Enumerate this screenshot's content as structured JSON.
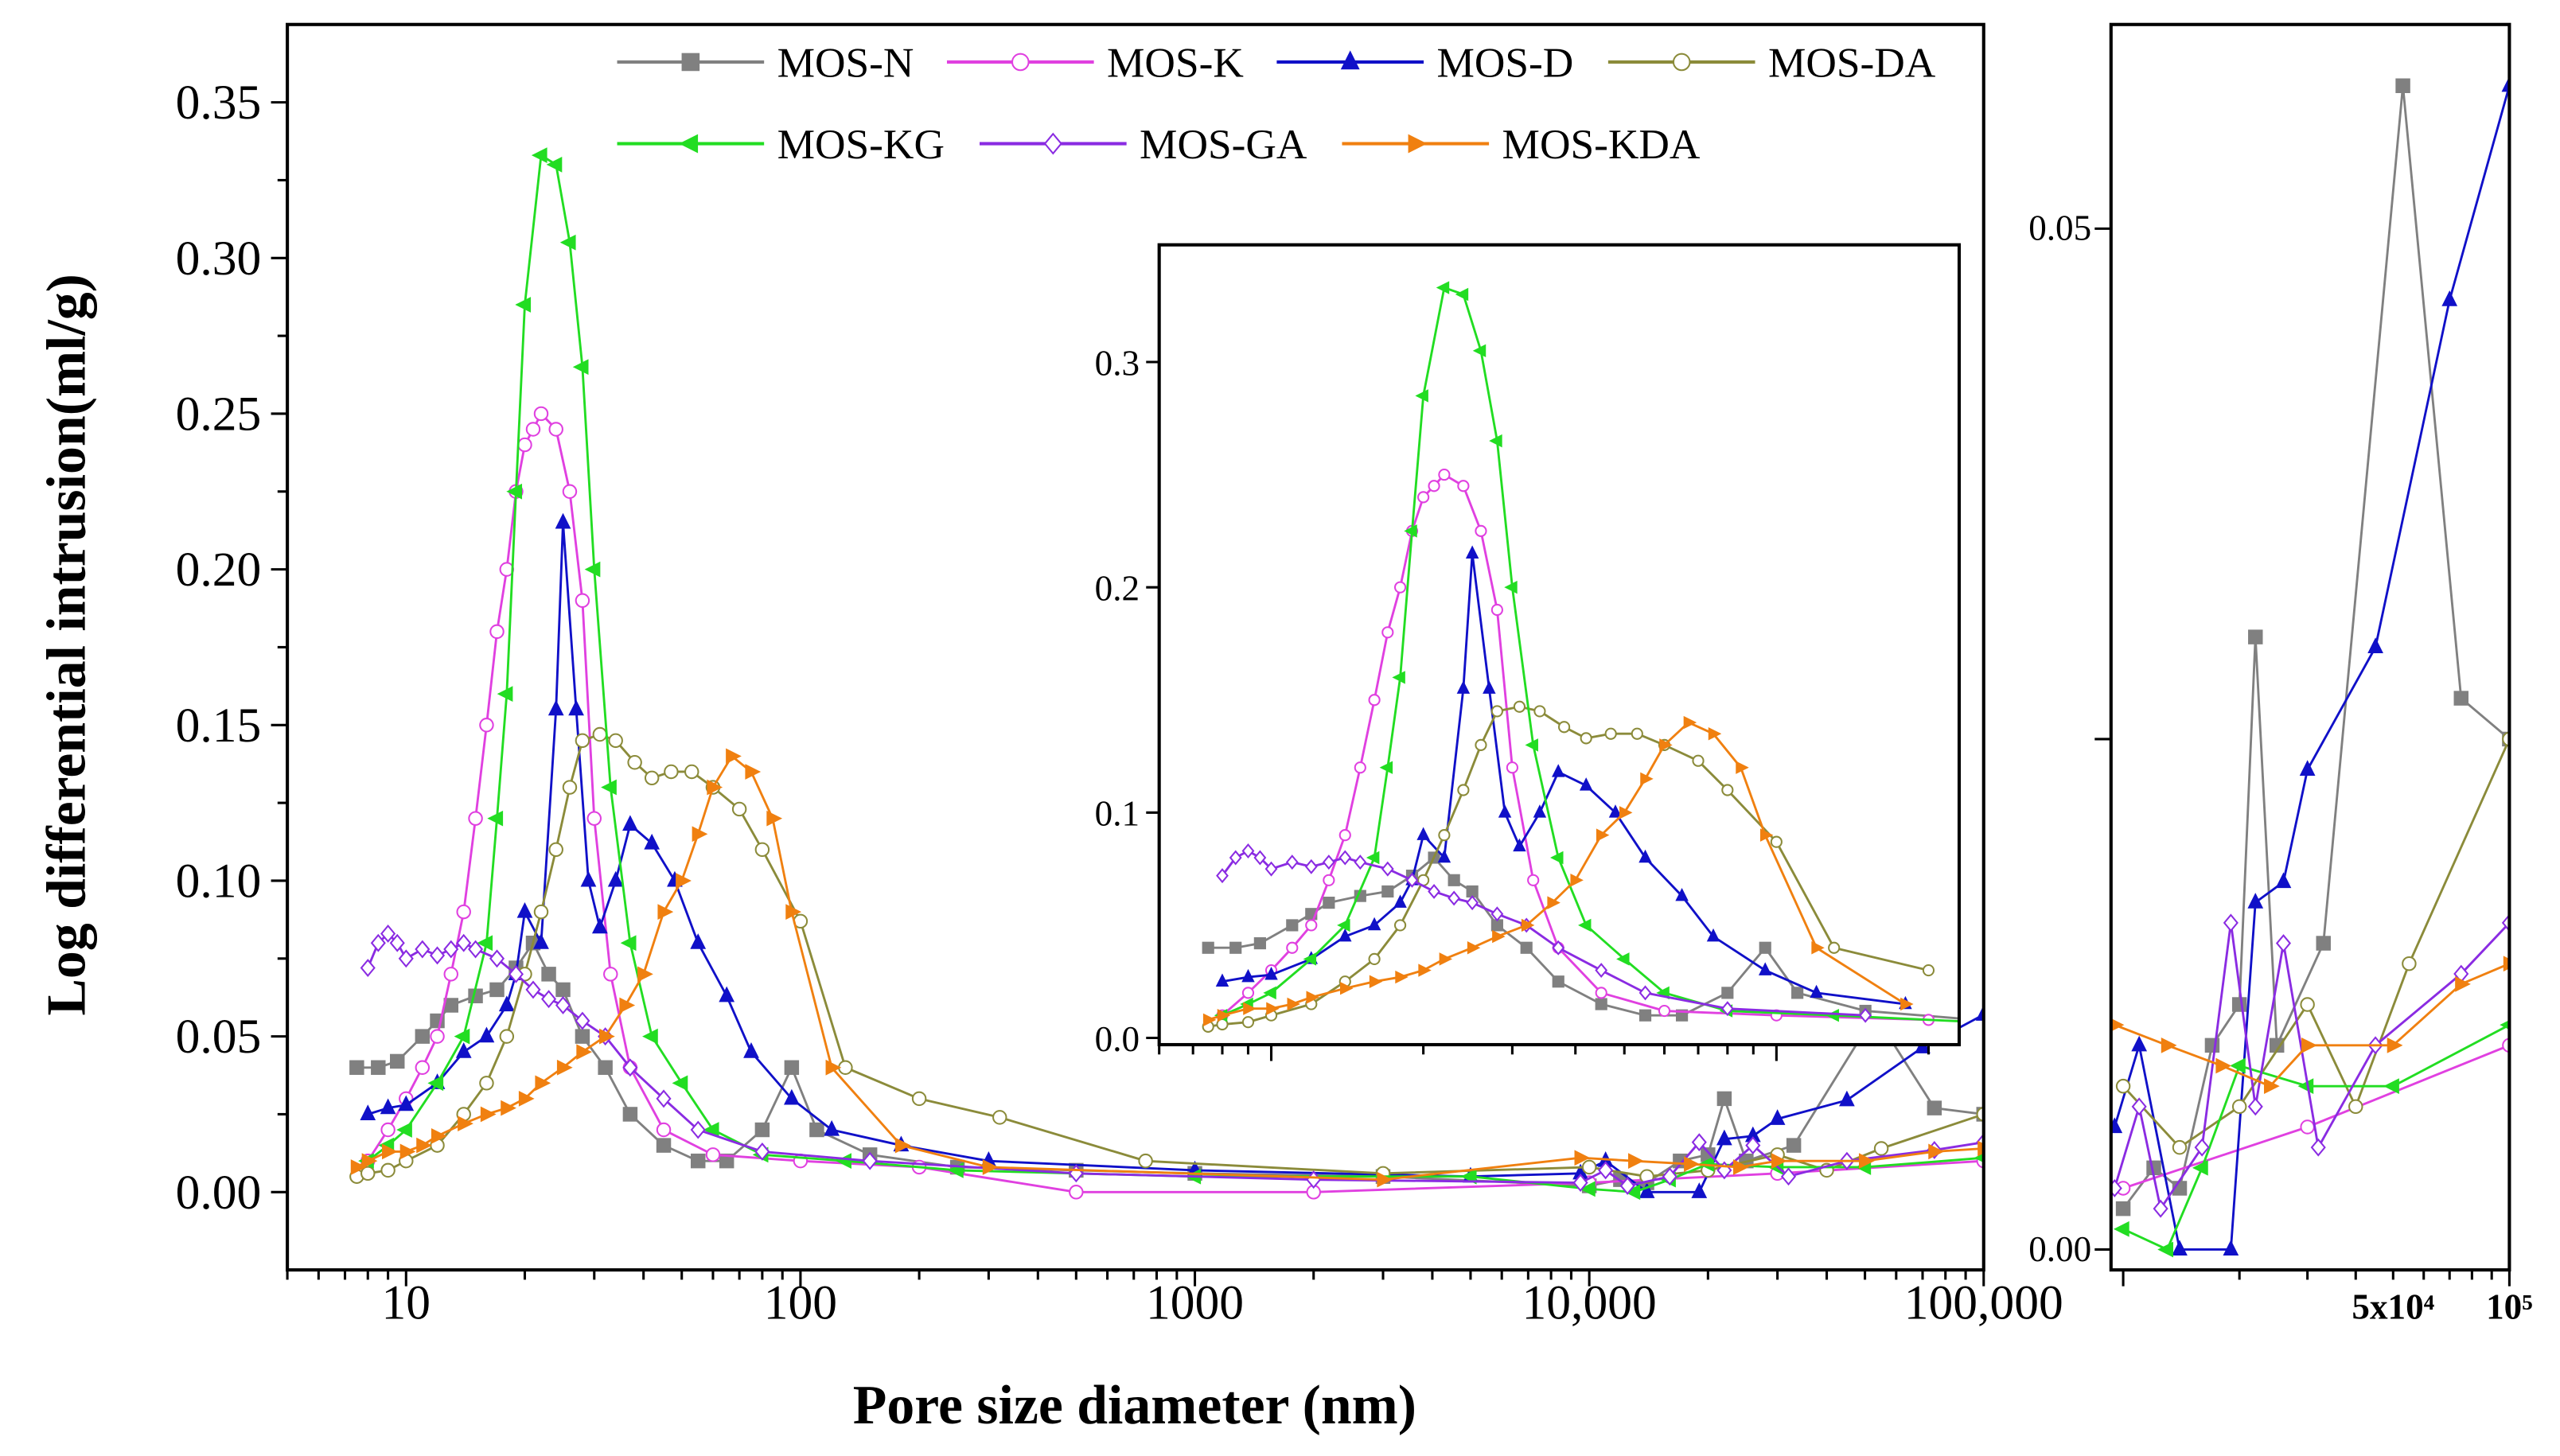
{
  "chart_data": {
    "type": "line",
    "title": "",
    "xlabel": "Pore size diameter (nm)",
    "ylabel": "Log differential intrusion(ml/g)",
    "xscale": "log",
    "xlim": [
      5,
      100000
    ],
    "ylim": [
      -0.025,
      0.375
    ],
    "grid": false,
    "legend_placement": "top",
    "x_ticks": [
      "10",
      "100",
      "1000",
      "10,000",
      "100,000"
    ],
    "y_ticks": [
      "0.00",
      "0.05",
      "0.10",
      "0.15",
      "0.20",
      "0.25",
      "0.30",
      "0.35"
    ],
    "inset": {
      "xscale": "log",
      "xlim": [
        6,
        230
      ],
      "ylim": [
        0,
        0.34
      ],
      "y_ticks": [
        "0.0",
        "0.1",
        "0.2",
        "0.3"
      ]
    },
    "side_panel": {
      "xscale": "log",
      "xlim": [
        9300,
        100000
      ],
      "ylim": [
        -0.001,
        0.06
      ],
      "y_ticks": [
        "0.00",
        "0.05"
      ],
      "x_tick_labels": [
        "5x10⁴",
        "10⁵"
      ]
    },
    "series": [
      {
        "name": "MOS-N",
        "color": "#808080",
        "marker": "square",
        "filled": true,
        "points": [
          [
            7.5,
            0.04
          ],
          [
            8.5,
            0.04
          ],
          [
            9.5,
            0.042
          ],
          [
            11,
            0.05
          ],
          [
            12,
            0.055
          ],
          [
            13,
            0.06
          ],
          [
            15,
            0.063
          ],
          [
            17,
            0.065
          ],
          [
            19,
            0.072
          ],
          [
            21,
            0.08
          ],
          [
            23,
            0.07
          ],
          [
            25,
            0.065
          ],
          [
            28,
            0.05
          ],
          [
            32,
            0.04
          ],
          [
            37,
            0.025
          ],
          [
            45,
            0.015
          ],
          [
            55,
            0.01
          ],
          [
            65,
            0.01
          ],
          [
            80,
            0.02
          ],
          [
            95,
            0.04
          ],
          [
            110,
            0.02
          ],
          [
            150,
            0.012
          ],
          [
            250,
            0.008
          ],
          [
            500,
            0.007
          ],
          [
            1000,
            0.006
          ],
          [
            3000,
            0.005
          ],
          [
            10000,
            0.002
          ],
          [
            12000,
            0.004
          ],
          [
            14000,
            0.003
          ],
          [
            17000,
            0.01
          ],
          [
            20000,
            0.012
          ],
          [
            22000,
            0.03
          ],
          [
            25000,
            0.01
          ],
          [
            33000,
            0.015
          ],
          [
            53000,
            0.057
          ],
          [
            75000,
            0.027
          ],
          [
            100000,
            0.025
          ]
        ]
      },
      {
        "name": "MOS-K",
        "color": "#e040e0",
        "marker": "circle",
        "filled": false,
        "points": [
          [
            8,
            0.01
          ],
          [
            9,
            0.02
          ],
          [
            10,
            0.03
          ],
          [
            11,
            0.04
          ],
          [
            12,
            0.05
          ],
          [
            13,
            0.07
          ],
          [
            14,
            0.09
          ],
          [
            15,
            0.12
          ],
          [
            16,
            0.15
          ],
          [
            17,
            0.18
          ],
          [
            18,
            0.2
          ],
          [
            19,
            0.225
          ],
          [
            20,
            0.24
          ],
          [
            21,
            0.245
          ],
          [
            22,
            0.25
          ],
          [
            24,
            0.245
          ],
          [
            26,
            0.225
          ],
          [
            28,
            0.19
          ],
          [
            30,
            0.12
          ],
          [
            33,
            0.07
          ],
          [
            37,
            0.04
          ],
          [
            45,
            0.02
          ],
          [
            60,
            0.012
          ],
          [
            100,
            0.01
          ],
          [
            200,
            0.008
          ],
          [
            500,
            0.0
          ],
          [
            2000,
            0.0
          ],
          [
            10000,
            0.003
          ],
          [
            30000,
            0.006
          ],
          [
            100000,
            0.01
          ]
        ]
      },
      {
        "name": "MOS-D",
        "color": "#1010c8",
        "marker": "triangle-up",
        "filled": true,
        "points": [
          [
            8,
            0.025
          ],
          [
            9,
            0.027
          ],
          [
            10,
            0.028
          ],
          [
            12,
            0.035
          ],
          [
            14,
            0.045
          ],
          [
            16,
            0.05
          ],
          [
            18,
            0.06
          ],
          [
            19,
            0.07
          ],
          [
            20,
            0.09
          ],
          [
            22,
            0.08
          ],
          [
            24,
            0.155
          ],
          [
            25,
            0.215
          ],
          [
            27,
            0.155
          ],
          [
            29,
            0.1
          ],
          [
            31,
            0.085
          ],
          [
            34,
            0.1
          ],
          [
            37,
            0.118
          ],
          [
            42,
            0.112
          ],
          [
            48,
            0.1
          ],
          [
            55,
            0.08
          ],
          [
            65,
            0.063
          ],
          [
            75,
            0.045
          ],
          [
            95,
            0.03
          ],
          [
            120,
            0.02
          ],
          [
            180,
            0.015
          ],
          [
            300,
            0.01
          ],
          [
            1000,
            0.007
          ],
          [
            5000,
            0.005
          ],
          [
            9500,
            0.006
          ],
          [
            11000,
            0.01
          ],
          [
            14000,
            0.0
          ],
          [
            19000,
            0.0
          ],
          [
            22000,
            0.017
          ],
          [
            26000,
            0.018
          ],
          [
            30000,
            0.0235
          ],
          [
            45000,
            0.0295
          ],
          [
            70000,
            0.0465
          ],
          [
            100000,
            0.057
          ]
        ]
      },
      {
        "name": "MOS-DA",
        "color": "#8b8b3a",
        "marker": "circle",
        "filled": false,
        "points": [
          [
            7.5,
            0.005
          ],
          [
            8,
            0.006
          ],
          [
            9,
            0.007
          ],
          [
            10,
            0.01
          ],
          [
            12,
            0.015
          ],
          [
            14,
            0.025
          ],
          [
            16,
            0.035
          ],
          [
            18,
            0.05
          ],
          [
            20,
            0.07
          ],
          [
            22,
            0.09
          ],
          [
            24,
            0.11
          ],
          [
            26,
            0.13
          ],
          [
            28,
            0.145
          ],
          [
            31,
            0.147
          ],
          [
            34,
            0.145
          ],
          [
            38,
            0.138
          ],
          [
            42,
            0.133
          ],
          [
            47,
            0.135
          ],
          [
            53,
            0.135
          ],
          [
            60,
            0.13
          ],
          [
            70,
            0.123
          ],
          [
            80,
            0.11
          ],
          [
            100,
            0.087
          ],
          [
            130,
            0.04
          ],
          [
            200,
            0.03
          ],
          [
            320,
            0.024
          ],
          [
            750,
            0.01
          ],
          [
            3000,
            0.006
          ],
          [
            10000,
            0.008
          ],
          [
            14000,
            0.005
          ],
          [
            20000,
            0.007
          ],
          [
            30000,
            0.012
          ],
          [
            40000,
            0.007
          ],
          [
            55000,
            0.014
          ],
          [
            100000,
            0.025
          ]
        ]
      },
      {
        "name": "MOS-KG",
        "color": "#22dd22",
        "marker": "triangle-left",
        "filled": true,
        "points": [
          [
            8,
            0.01
          ],
          [
            9,
            0.015
          ],
          [
            10,
            0.02
          ],
          [
            12,
            0.035
          ],
          [
            14,
            0.05
          ],
          [
            16,
            0.08
          ],
          [
            17,
            0.12
          ],
          [
            18,
            0.16
          ],
          [
            19,
            0.225
          ],
          [
            20,
            0.285
          ],
          [
            22,
            0.333
          ],
          [
            24,
            0.33
          ],
          [
            26,
            0.305
          ],
          [
            28,
            0.265
          ],
          [
            30,
            0.2
          ],
          [
            33,
            0.13
          ],
          [
            37,
            0.08
          ],
          [
            42,
            0.05
          ],
          [
            50,
            0.035
          ],
          [
            60,
            0.02
          ],
          [
            80,
            0.012
          ],
          [
            130,
            0.01
          ],
          [
            250,
            0.007
          ],
          [
            1000,
            0.005
          ],
          [
            5000,
            0.005
          ],
          [
            10000,
            0.001
          ],
          [
            13000,
            0.0
          ],
          [
            16000,
            0.004
          ],
          [
            20000,
            0.009
          ],
          [
            30000,
            0.008
          ],
          [
            50000,
            0.008
          ],
          [
            100000,
            0.011
          ]
        ]
      },
      {
        "name": "MOS-GA",
        "color": "#8a2be2",
        "marker": "diamond",
        "filled": false,
        "points": [
          [
            8,
            0.072
          ],
          [
            8.5,
            0.08
          ],
          [
            9,
            0.083
          ],
          [
            9.5,
            0.08
          ],
          [
            10,
            0.075
          ],
          [
            11,
            0.078
          ],
          [
            12,
            0.076
          ],
          [
            13,
            0.078
          ],
          [
            14,
            0.08
          ],
          [
            15,
            0.078
          ],
          [
            17,
            0.075
          ],
          [
            19,
            0.07
          ],
          [
            21,
            0.065
          ],
          [
            23,
            0.062
          ],
          [
            25,
            0.06
          ],
          [
            28,
            0.055
          ],
          [
            32,
            0.05
          ],
          [
            37,
            0.04
          ],
          [
            45,
            0.03
          ],
          [
            55,
            0.02
          ],
          [
            80,
            0.013
          ],
          [
            150,
            0.01
          ],
          [
            500,
            0.006
          ],
          [
            2000,
            0.004
          ],
          [
            9500,
            0.003
          ],
          [
            11000,
            0.007
          ],
          [
            12500,
            0.002
          ],
          [
            16000,
            0.005
          ],
          [
            19000,
            0.016
          ],
          [
            22000,
            0.007
          ],
          [
            26000,
            0.015
          ],
          [
            32000,
            0.005
          ],
          [
            45000,
            0.01
          ],
          [
            75000,
            0.0135
          ],
          [
            100000,
            0.016
          ]
        ]
      },
      {
        "name": "MOS-KDA",
        "color": "#f08010",
        "marker": "triangle-right",
        "filled": true,
        "points": [
          [
            7.5,
            0.008
          ],
          [
            8,
            0.01
          ],
          [
            9,
            0.013
          ],
          [
            10,
            0.013
          ],
          [
            11,
            0.015
          ],
          [
            12,
            0.018
          ],
          [
            14,
            0.022
          ],
          [
            16,
            0.025
          ],
          [
            18,
            0.027
          ],
          [
            20,
            0.03
          ],
          [
            22,
            0.035
          ],
          [
            25,
            0.04
          ],
          [
            28,
            0.045
          ],
          [
            32,
            0.05
          ],
          [
            36,
            0.06
          ],
          [
            40,
            0.07
          ],
          [
            45,
            0.09
          ],
          [
            50,
            0.1
          ],
          [
            55,
            0.115
          ],
          [
            60,
            0.13
          ],
          [
            67,
            0.14
          ],
          [
            75,
            0.135
          ],
          [
            85,
            0.12
          ],
          [
            95,
            0.09
          ],
          [
            120,
            0.04
          ],
          [
            180,
            0.015
          ],
          [
            300,
            0.008
          ],
          [
            3000,
            0.004
          ],
          [
            9500,
            0.011
          ],
          [
            13000,
            0.01
          ],
          [
            18000,
            0.009
          ],
          [
            24000,
            0.008
          ],
          [
            30000,
            0.01
          ],
          [
            50000,
            0.01
          ],
          [
            75000,
            0.013
          ],
          [
            100000,
            0.014
          ]
        ]
      }
    ]
  }
}
